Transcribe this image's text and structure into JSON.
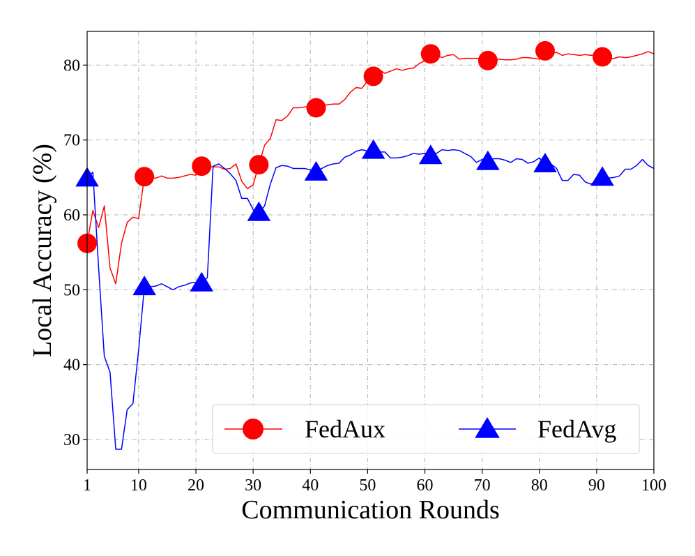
{
  "chart_data": {
    "type": "line",
    "title": "",
    "xlabel": "Communication Rounds",
    "ylabel": "Local Accuracy (%)",
    "xlim": [
      1,
      100
    ],
    "ylim": [
      26,
      84.5
    ],
    "xticks": [
      1,
      10,
      20,
      30,
      40,
      50,
      60,
      70,
      80,
      90,
      100
    ],
    "yticks": [
      30,
      40,
      50,
      60,
      70,
      80
    ],
    "grid": true,
    "legend_position": "bottom-right",
    "series": [
      {
        "name": "FedAux",
        "color": "#ff0000",
        "marker": "circle",
        "marker_x": [
          1,
          11,
          21,
          31,
          41,
          51,
          61,
          71,
          81,
          91
        ],
        "y": [
          56.2,
          60.6,
          58.3,
          61.2,
          52.9,
          50.8,
          56.2,
          59.0,
          59.7,
          59.5,
          65.1,
          65.0,
          64.9,
          65.2,
          64.9,
          64.9,
          65.0,
          65.2,
          65.4,
          65.3,
          66.5,
          66.4,
          66.4,
          66.4,
          66.1,
          66.2,
          66.8,
          64.5,
          63.5,
          64.0,
          66.7,
          69.3,
          70.2,
          72.7,
          72.6,
          73.2,
          74.3,
          74.3,
          74.4,
          74.5,
          74.3,
          74.6,
          74.7,
          74.8,
          74.8,
          75.4,
          76.4,
          77.0,
          76.9,
          77.9,
          78.5,
          79.4,
          78.9,
          79.2,
          79.5,
          79.3,
          79.5,
          79.6,
          80.2,
          80.6,
          81.5,
          81.3,
          81.0,
          81.3,
          81.4,
          80.8,
          80.9,
          80.9,
          80.9,
          80.9,
          80.6,
          80.7,
          80.8,
          80.7,
          80.7,
          80.8,
          81.0,
          81.0,
          80.9,
          80.8,
          81.9,
          81.5,
          81.7,
          81.3,
          81.5,
          81.4,
          81.3,
          81.4,
          81.3,
          81.4,
          81.1,
          80.7,
          80.9,
          81.1,
          81.0,
          81.1,
          81.3,
          81.5,
          81.8,
          81.5
        ]
      },
      {
        "name": "FedAvg",
        "color": "#0000ff",
        "marker": "triangle",
        "marker_x": [
          1,
          11,
          21,
          31,
          41,
          51,
          61,
          71,
          81,
          91
        ],
        "y": [
          64.9,
          65.7,
          53.0,
          41.1,
          39.0,
          28.7,
          28.7,
          34.0,
          34.8,
          42.0,
          50.4,
          50.4,
          50.5,
          50.8,
          50.4,
          50.0,
          50.4,
          50.6,
          50.9,
          51.0,
          50.9,
          51.6,
          66.5,
          66.8,
          66.2,
          65.5,
          64.6,
          62.2,
          62.2,
          60.7,
          60.3,
          61.2,
          64.1,
          66.3,
          66.6,
          66.5,
          66.2,
          66.2,
          66.2,
          66.0,
          65.7,
          66.2,
          66.6,
          66.8,
          66.9,
          67.7,
          68.0,
          68.5,
          68.7,
          68.5,
          68.6,
          68.4,
          68.4,
          67.6,
          67.6,
          67.7,
          67.9,
          68.2,
          68.1,
          68.2,
          67.9,
          68.2,
          68.7,
          68.6,
          68.7,
          68.6,
          68.2,
          67.8,
          67.0,
          67.4,
          67.1,
          67.5,
          67.5,
          67.3,
          67.0,
          67.5,
          67.4,
          66.9,
          67.1,
          67.6,
          66.8,
          66.8,
          66.2,
          64.6,
          64.6,
          65.4,
          65.3,
          64.4,
          64.1,
          64.6,
          65.0,
          64.9,
          65.0,
          65.2,
          66.1,
          66.1,
          66.6,
          67.4,
          66.6,
          66.2
        ]
      }
    ]
  }
}
